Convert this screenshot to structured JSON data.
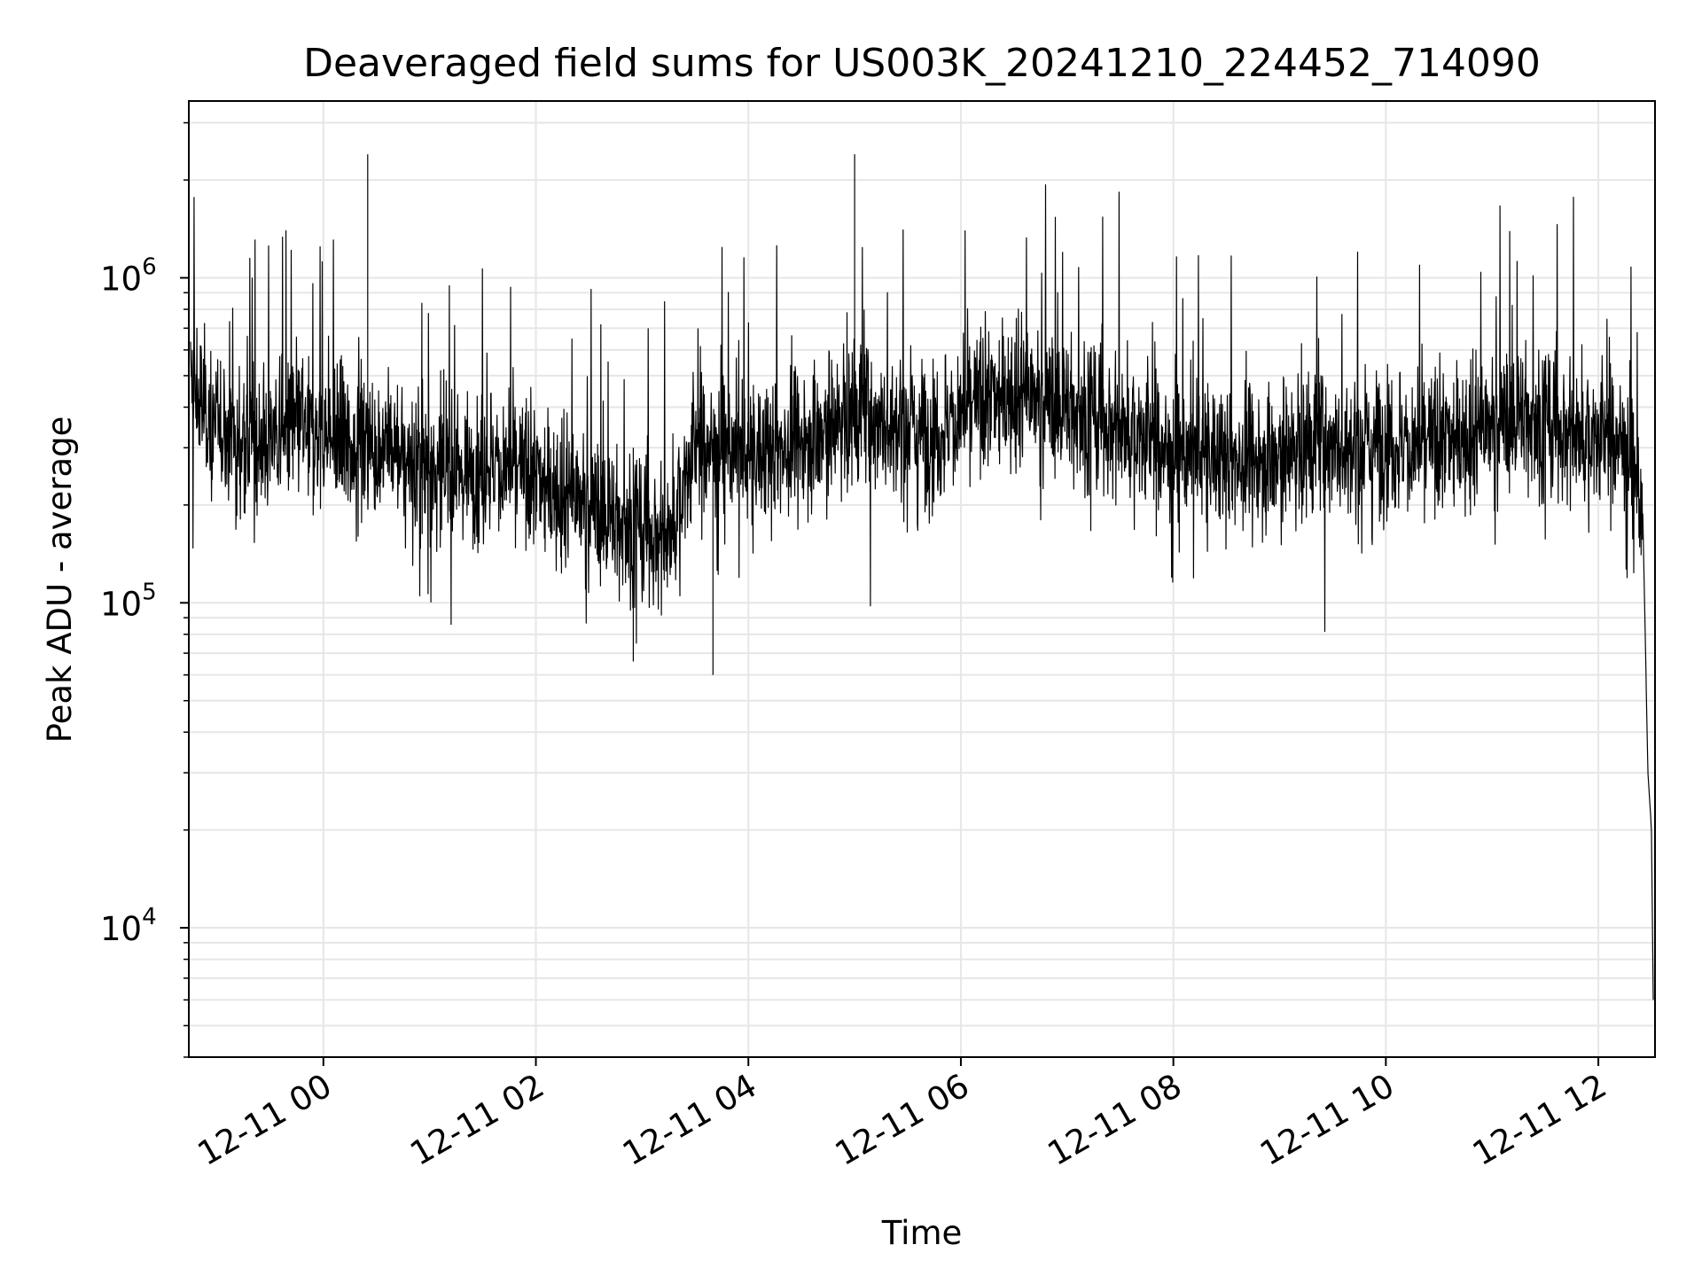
{
  "chart_data": {
    "type": "line",
    "title": "Deaveraged field sums for US003K_20241210_224452_714090",
    "xlabel": "Time",
    "ylabel": "Peak ADU - average",
    "yscale": "log",
    "grid": true,
    "line_color": "#000000",
    "grid_color": "#e6e6e6",
    "x_tick_labels": [
      "12-11 00",
      "12-11 02",
      "12-11 04",
      "12-11 06",
      "12-11 08",
      "12-11 10",
      "12-11 12"
    ],
    "y_tick_labels": [
      {
        "base": "10",
        "exp": "4",
        "value": 10000
      },
      {
        "base": "10",
        "exp": "5",
        "value": 100000
      },
      {
        "base": "10",
        "exp": "6",
        "value": 1000000
      }
    ],
    "xlim": [
      "2024-12-10 22:44",
      "2024-12-11 12:32"
    ],
    "ylim": [
      4000,
      3500000
    ],
    "series": [
      {
        "x": [
          "2024-12-10 22:45",
          "2024-12-10 23:00",
          "2024-12-10 23:15",
          "2024-12-10 23:30",
          "2024-12-10 23:45",
          "2024-12-11 00:00",
          "2024-12-11 00:15",
          "2024-12-11 00:30",
          "2024-12-11 00:45",
          "2024-12-11 01:00",
          "2024-12-11 01:15",
          "2024-12-11 01:30",
          "2024-12-11 01:45",
          "2024-12-11 02:00",
          "2024-12-11 02:15",
          "2024-12-11 02:30",
          "2024-12-11 02:45",
          "2024-12-11 03:00",
          "2024-12-11 03:15",
          "2024-12-11 03:30",
          "2024-12-11 03:45",
          "2024-12-11 04:00",
          "2024-12-11 04:15",
          "2024-12-11 04:30",
          "2024-12-11 04:45",
          "2024-12-11 05:00",
          "2024-12-11 05:15",
          "2024-12-11 05:30",
          "2024-12-11 05:45",
          "2024-12-11 06:00",
          "2024-12-11 06:15",
          "2024-12-11 06:30",
          "2024-12-11 06:45",
          "2024-12-11 07:00",
          "2024-12-11 07:15",
          "2024-12-11 07:30",
          "2024-12-11 07:45",
          "2024-12-11 08:00",
          "2024-12-11 08:15",
          "2024-12-11 08:30",
          "2024-12-11 08:45",
          "2024-12-11 09:00",
          "2024-12-11 09:15",
          "2024-12-11 09:30",
          "2024-12-11 09:45",
          "2024-12-11 10:00",
          "2024-12-11 10:15",
          "2024-12-11 10:30",
          "2024-12-11 10:45",
          "2024-12-11 11:00",
          "2024-12-11 11:15",
          "2024-12-11 11:30",
          "2024-12-11 11:45",
          "2024-12-11 12:00",
          "2024-12-11 12:15",
          "2024-12-11 12:25",
          "2024-12-11 12:28",
          "2024-12-11 12:30",
          "2024-12-11 12:31"
        ],
        "y": [
          450000,
          350000,
          300000,
          320000,
          350000,
          320000,
          300000,
          310000,
          280000,
          260000,
          250000,
          270000,
          260000,
          240000,
          220000,
          200000,
          180000,
          170000,
          160000,
          300000,
          320000,
          280000,
          300000,
          320000,
          350000,
          380000,
          360000,
          350000,
          330000,
          380000,
          420000,
          450000,
          420000,
          400000,
          380000,
          350000,
          320000,
          300000,
          290000,
          280000,
          280000,
          290000,
          300000,
          310000,
          300000,
          320000,
          300000,
          310000,
          330000,
          350000,
          380000,
          360000,
          340000,
          320000,
          330000,
          200000,
          30000,
          20000,
          6000
        ]
      }
    ]
  }
}
